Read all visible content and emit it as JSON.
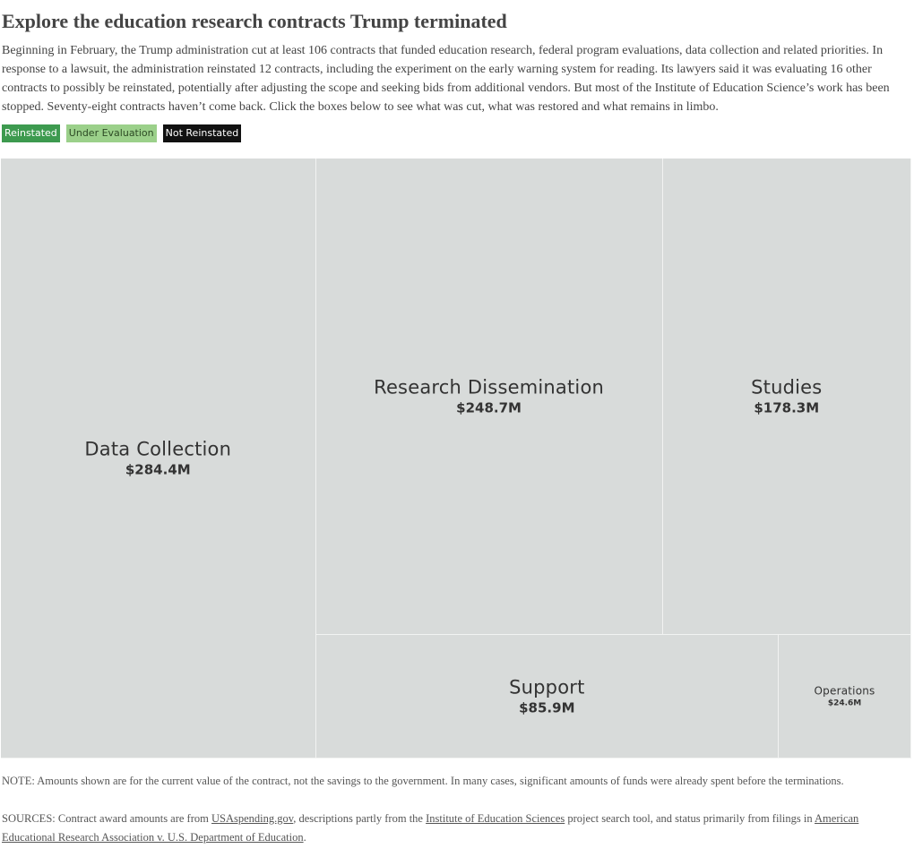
{
  "header": {
    "title": "Explore the education research contracts Trump terminated",
    "intro": "Beginning in February, the Trump administration cut at least 106 contracts that funded education research, federal program evaluations, data collection and related priorities. In response to a lawsuit, the administration reinstated 12 contracts, including the experiment on the early warning system for reading. Its lawyers said it was evaluating 16 other contracts to possibly be reinstated, potentially after adjusting the scope and seeking bids from additional vendors. But most of the Institute of Education Science’s work has been stopped. Seventy-eight contracts haven’t come back. Click the boxes below to see what was cut, what was restored and what remains in limbo."
  },
  "legend": [
    {
      "label": "Reinstated",
      "bg": "#3d9a4f",
      "fg": "#ffffff"
    },
    {
      "label": "Under Evaluation",
      "bg": "#9bd08a",
      "fg": "#2c4a24"
    },
    {
      "label": "Not Reinstated",
      "bg": "#111111",
      "fg": "#ffffff"
    }
  ],
  "chart_data": {
    "type": "treemap",
    "title": "",
    "colors": {
      "cell": "#d8dbda",
      "cell_border": "#f2f3f2",
      "text": "#333333"
    },
    "nodes": [
      {
        "name": "Data Collection",
        "value": 284.4,
        "label": "$284.4M"
      },
      {
        "name": "Research Dissemination",
        "value": 248.7,
        "label": "$248.7M"
      },
      {
        "name": "Studies",
        "value": 178.3,
        "label": "$178.3M"
      },
      {
        "name": "Support",
        "value": 85.9,
        "label": "$85.9M"
      },
      {
        "name": "Operations",
        "value": 24.6,
        "label": "$24.6M"
      }
    ]
  },
  "footer": {
    "note": "NOTE: Amounts shown are for the current value of the contract, not the savings to the government. In many cases, significant amounts of funds were already spent before the terminations.",
    "sources_prefix": "SOURCES: Contract award amounts are from ",
    "link_usaspending": "USAspending.gov",
    "sources_mid1": ", descriptions partly from the ",
    "link_ies": "Institute of Education Sciences",
    "sources_mid2": " project search tool, and status primarily from filings in ",
    "link_case": "American Educational Research Association v. U.S. Department of Education",
    "sources_end": "."
  }
}
